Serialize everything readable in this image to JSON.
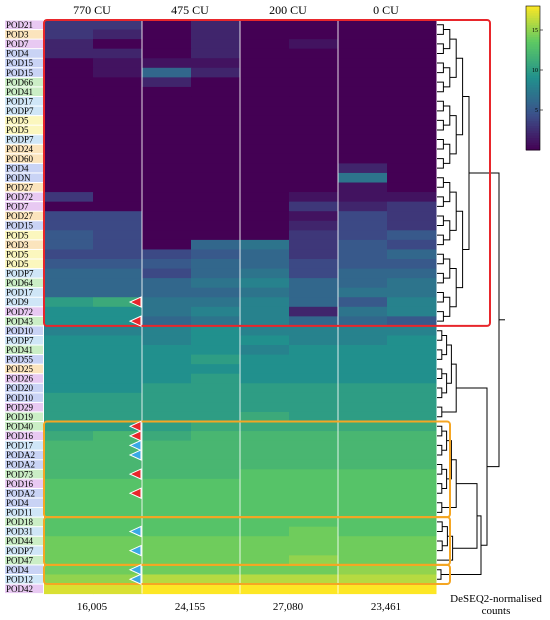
{
  "chart_data": {
    "type": "heatmap",
    "title": "",
    "column_headers": [
      "770 CU",
      "475 CU",
      "200 CU",
      "0 CU"
    ],
    "column_totals": [
      "16,005",
      "24,155",
      "27,080",
      "23,461"
    ],
    "colorbar_label": "DeSEQ2-normalised counts",
    "colorbar_ticks": [
      15,
      10,
      5
    ],
    "colorbar_range": [
      0,
      18
    ],
    "colormap": [
      "#440154",
      "#3b528b",
      "#21908d",
      "#5dc963",
      "#fde725"
    ],
    "rows": [
      {
        "label": "POD21",
        "family": "#e8c9f2",
        "values": [
          3,
          3,
          0,
          2,
          0,
          0,
          0,
          0
        ]
      },
      {
        "label": "POD3",
        "family": "#fbe4bd",
        "values": [
          3,
          2,
          0,
          2,
          0,
          0,
          0,
          0
        ]
      },
      {
        "label": "POD7",
        "family": "#e8c9f2",
        "values": [
          2,
          0,
          0,
          2,
          0,
          1,
          0,
          0
        ]
      },
      {
        "label": "POD4",
        "family": "#c9d3f5",
        "values": [
          2,
          2,
          0,
          2,
          0,
          0,
          0,
          0
        ]
      },
      {
        "label": "POD15",
        "family": "#c9d3f5",
        "values": [
          0,
          1,
          1,
          1,
          0,
          0,
          0,
          0
        ]
      },
      {
        "label": "POD15",
        "family": "#c9d3f5",
        "values": [
          0,
          1,
          6,
          2,
          0,
          0,
          0,
          0
        ]
      },
      {
        "label": "POD66",
        "family": "#cbeec6",
        "values": [
          0,
          0,
          2,
          0,
          0,
          0,
          0,
          0
        ]
      },
      {
        "label": "POD41",
        "family": "#cbeec6",
        "values": [
          0,
          0,
          0,
          0,
          0,
          0,
          0,
          0
        ]
      },
      {
        "label": "POD17",
        "family": "#cfe6f7",
        "values": [
          0,
          0,
          0,
          0,
          0,
          0,
          0,
          0
        ]
      },
      {
        "label": "PODP7",
        "family": "#cfe6f7",
        "values": [
          0,
          0,
          0,
          0,
          0,
          0,
          0,
          0
        ]
      },
      {
        "label": "POD5",
        "family": "#fbf7be",
        "values": [
          0,
          0,
          0,
          0,
          0,
          0,
          0,
          0
        ]
      },
      {
        "label": "POD5",
        "family": "#fbf7be",
        "values": [
          0,
          0,
          0,
          0,
          0,
          0,
          0,
          0
        ]
      },
      {
        "label": "PODP7",
        "family": "#cfe6f7",
        "values": [
          0,
          0,
          0,
          0,
          0,
          0,
          0,
          0
        ]
      },
      {
        "label": "POD24",
        "family": "#fbe4bd",
        "values": [
          0,
          0,
          0,
          0,
          0,
          0,
          0,
          0
        ]
      },
      {
        "label": "POD60",
        "family": "#fbe4bd",
        "values": [
          0,
          0,
          0,
          0,
          0,
          0,
          0,
          0
        ]
      },
      {
        "label": "POD4",
        "family": "#c9d3f5",
        "values": [
          0,
          0,
          0,
          0,
          0,
          0,
          2,
          0
        ]
      },
      {
        "label": "PODN",
        "family": "#c9d3f5",
        "values": [
          0,
          0,
          0,
          0,
          0,
          0,
          7,
          0
        ]
      },
      {
        "label": "POD27",
        "family": "#fbe4bd",
        "values": [
          0,
          0,
          0,
          0,
          0,
          0,
          1,
          0
        ]
      },
      {
        "label": "POD72",
        "family": "#e8c9f2",
        "values": [
          3,
          0,
          0,
          0,
          0,
          1,
          1,
          1
        ]
      },
      {
        "label": "POD7",
        "family": "#e8c9f2",
        "values": [
          0,
          0,
          0,
          0,
          0,
          3,
          2,
          3
        ]
      },
      {
        "label": "POD27",
        "family": "#fbe4bd",
        "values": [
          4,
          4,
          0,
          0,
          0,
          1,
          4,
          3
        ]
      },
      {
        "label": "POD15",
        "family": "#c9d3f5",
        "values": [
          4,
          4,
          0,
          0,
          0,
          2,
          4,
          3
        ]
      },
      {
        "label": "POD5",
        "family": "#fbf7be",
        "values": [
          5,
          4,
          0,
          0,
          0,
          3,
          4,
          5
        ]
      },
      {
        "label": "POD3",
        "family": "#fbe4bd",
        "values": [
          5,
          4,
          0,
          6,
          7,
          3,
          5,
          4
        ]
      },
      {
        "label": "POD5",
        "family": "#fbf7be",
        "values": [
          4,
          4,
          4,
          5,
          6,
          3,
          5,
          6
        ]
      },
      {
        "label": "POD5",
        "family": "#fbf7be",
        "values": [
          5,
          5,
          5,
          6,
          6,
          4,
          5,
          5
        ]
      },
      {
        "label": "PODP7",
        "family": "#cfe6f7",
        "values": [
          6,
          6,
          4,
          6,
          7,
          4,
          6,
          6
        ]
      },
      {
        "label": "POD64",
        "family": "#cbeec6",
        "values": [
          6,
          6,
          6,
          7,
          8,
          6,
          6,
          7
        ]
      },
      {
        "label": "POD17",
        "family": "#cfe6f7",
        "values": [
          6,
          6,
          6,
          6,
          7,
          6,
          7,
          7
        ]
      },
      {
        "label": "POD9",
        "family": "#cfe6f7",
        "values": [
          10,
          11,
          7,
          7,
          8,
          6,
          5,
          8
        ]
      },
      {
        "label": "POD72",
        "family": "#e8c9f2",
        "values": [
          9,
          9,
          7,
          8,
          8,
          2,
          7,
          8
        ]
      },
      {
        "label": "POD43",
        "family": "#cbeec6",
        "values": [
          9,
          9,
          6,
          7,
          8,
          6,
          6,
          5
        ]
      },
      {
        "label": "POD10",
        "family": "#c9d3f5",
        "values": [
          8,
          8,
          8,
          9,
          8,
          8,
          8,
          8
        ]
      },
      {
        "label": "PODP7",
        "family": "#cfe6f7",
        "values": [
          9,
          9,
          8,
          9,
          9,
          8,
          8,
          9
        ]
      },
      {
        "label": "POD41",
        "family": "#cbeec6",
        "values": [
          9,
          9,
          9,
          9,
          8,
          9,
          9,
          9
        ]
      },
      {
        "label": "POD55",
        "family": "#c9d3f5",
        "values": [
          9,
          9,
          9,
          10,
          9,
          9,
          9,
          9
        ]
      },
      {
        "label": "POD25",
        "family": "#fbe4bd",
        "values": [
          9,
          9,
          9,
          9,
          9,
          9,
          9,
          9
        ]
      },
      {
        "label": "POD26",
        "family": "#e8c9f2",
        "values": [
          9,
          9,
          9,
          10,
          9,
          9,
          9,
          9
        ]
      },
      {
        "label": "POD20",
        "family": "#c9d3f5",
        "values": [
          9,
          9,
          10,
          10,
          10,
          10,
          10,
          10
        ]
      },
      {
        "label": "POD10",
        "family": "#c9d3f5",
        "values": [
          10,
          10,
          10,
          10,
          10,
          10,
          10,
          10
        ]
      },
      {
        "label": "POD29",
        "family": "#e8c9f2",
        "values": [
          10,
          10,
          10,
          10,
          10,
          10,
          10,
          10
        ]
      },
      {
        "label": "POD19",
        "family": "#cbeec6",
        "values": [
          10,
          10,
          10,
          10,
          11,
          10,
          10,
          10
        ]
      },
      {
        "label": "POD40",
        "family": "#cbeec6",
        "values": [
          10,
          10,
          10,
          11,
          11,
          11,
          11,
          11
        ]
      },
      {
        "label": "POD16",
        "family": "#e8c9f2",
        "values": [
          11,
          12,
          11,
          12,
          12,
          12,
          12,
          12
        ]
      },
      {
        "label": "POD17",
        "family": "#cfe6f7",
        "values": [
          12,
          12,
          12,
          12,
          12,
          12,
          12,
          12
        ]
      },
      {
        "label": "PODA2",
        "family": "#c9d3f5",
        "values": [
          12,
          12,
          12,
          12,
          12,
          12,
          12,
          12
        ]
      },
      {
        "label": "PODA2",
        "family": "#c9d3f5",
        "values": [
          12,
          12,
          12,
          12,
          12,
          12,
          12,
          12
        ]
      },
      {
        "label": "POD73",
        "family": "#cbeec6",
        "values": [
          12,
          12,
          12,
          12,
          13,
          13,
          13,
          13
        ]
      },
      {
        "label": "POD16",
        "family": "#e8c9f2",
        "values": [
          13,
          13,
          13,
          13,
          13,
          13,
          13,
          13
        ]
      },
      {
        "label": "PODA2",
        "family": "#c9d3f5",
        "values": [
          13,
          13,
          13,
          13,
          13,
          13,
          13,
          13
        ]
      },
      {
        "label": "POD4",
        "family": "#c9d3f5",
        "values": [
          13,
          13,
          13,
          13,
          13,
          13,
          13,
          13
        ]
      },
      {
        "label": "POD11",
        "family": "#cfe6f7",
        "values": [
          13,
          13,
          13,
          13,
          13,
          13,
          13,
          13
        ]
      },
      {
        "label": "POD18",
        "family": "#cbeec6",
        "values": [
          13,
          13,
          13,
          13,
          13,
          13,
          13,
          13
        ]
      },
      {
        "label": "POD31",
        "family": "#cfe6f7",
        "values": [
          13,
          13,
          13,
          13,
          13,
          14,
          13,
          13
        ]
      },
      {
        "label": "POD44",
        "family": "#cbeec6",
        "values": [
          14,
          14,
          14,
          14,
          14,
          14,
          14,
          14
        ]
      },
      {
        "label": "PODP7",
        "family": "#cfe6f7",
        "values": [
          14,
          14,
          14,
          14,
          14,
          14,
          14,
          14
        ]
      },
      {
        "label": "POD47",
        "family": "#cbeec6",
        "values": [
          14,
          14,
          14,
          14,
          14,
          15,
          14,
          14
        ]
      },
      {
        "label": "POD4",
        "family": "#c9d3f5",
        "values": [
          14,
          14,
          14,
          14,
          14,
          14,
          15,
          15
        ]
      },
      {
        "label": "POD12",
        "family": "#cfe6f7",
        "values": [
          15,
          15,
          16,
          16,
          16,
          16,
          16,
          16
        ]
      },
      {
        "label": "POD42",
        "family": "#e8c9f2",
        "values": [
          17,
          17,
          18,
          18,
          18,
          18,
          18,
          18
        ]
      }
    ],
    "highlight_boxes": [
      {
        "color": "#e8262b",
        "from_row": 0,
        "to_row": 31
      },
      {
        "color": "#f5a623",
        "from_row": 42,
        "to_row": 51
      },
      {
        "color": "#f5a623",
        "from_row": 52,
        "to_row": 56
      },
      {
        "color": "#f5a623",
        "from_row": 57,
        "to_row": 58
      }
    ],
    "arrows": [
      {
        "row": 29,
        "color": "#e8262b"
      },
      {
        "row": 31,
        "color": "#e8262b"
      },
      {
        "row": 42,
        "color": "#e8262b"
      },
      {
        "row": 43,
        "color": "#e8262b"
      },
      {
        "row": 44,
        "color": "#3aa9e5"
      },
      {
        "row": 45,
        "color": "#3aa9e5"
      },
      {
        "row": 47,
        "color": "#e8262b"
      },
      {
        "row": 49,
        "color": "#e8262b"
      },
      {
        "row": 53,
        "color": "#3aa9e5"
      },
      {
        "row": 55,
        "color": "#3aa9e5"
      },
      {
        "row": 57,
        "color": "#3aa9e5"
      },
      {
        "row": 58,
        "color": "#3aa9e5"
      }
    ]
  }
}
